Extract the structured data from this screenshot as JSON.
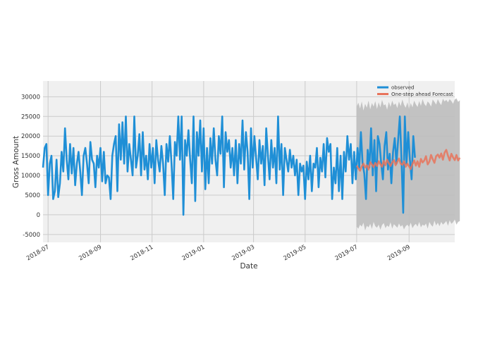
{
  "chart_data": {
    "type": "line",
    "title": "",
    "xlabel": "Date",
    "ylabel": "Gross Amount",
    "x_range": [
      "2018-06-25",
      "2019-10-25"
    ],
    "ylim": [
      -7000,
      34000
    ],
    "x_ticks": [
      "2018-07",
      "2018-09",
      "2018-11",
      "2019-01",
      "2019-03",
      "2019-05",
      "2019-07",
      "2019-09"
    ],
    "y_ticks": [
      -5000,
      0,
      5000,
      10000,
      15000,
      20000,
      25000,
      30000
    ],
    "grid": true,
    "legend_position": "top-right",
    "forecast_start": "2019-07-01",
    "series": [
      {
        "name": "observed",
        "color": "#1f8fd6",
        "start_date": "2018-06-25",
        "step_days": 2,
        "values": [
          12000,
          17000,
          18000,
          5000,
          13000,
          15000,
          4000,
          6000,
          14000,
          4500,
          8000,
          16000,
          11000,
          22000,
          14000,
          9000,
          18000,
          10500,
          17000,
          7500,
          13000,
          16000,
          11000,
          5000,
          15000,
          17000,
          13000,
          8000,
          18500,
          14000,
          13000,
          7000,
          15000,
          12000,
          17000,
          8500,
          16000,
          8000,
          10000,
          9500,
          4000,
          15000,
          18000,
          20000,
          6000,
          23000,
          14000,
          23500,
          13000,
          25000,
          11000,
          18000,
          14000,
          10000,
          25000,
          12000,
          15000,
          20500,
          10000,
          21000,
          11500,
          15000,
          9000,
          18000,
          12000,
          17000,
          8000,
          19000,
          14000,
          11000,
          17500,
          13000,
          5000,
          18000,
          13500,
          20000,
          13000,
          4000,
          18500,
          15000,
          25000,
          14000,
          25000,
          0,
          19000,
          15000,
          21500,
          14000,
          8000,
          25000,
          3500,
          21000,
          15000,
          24000,
          11000,
          22000,
          6500,
          17000,
          8000,
          19500,
          13000,
          22000,
          14000,
          10000,
          20000,
          15500,
          25000,
          7000,
          21000,
          16000,
          19000,
          12000,
          17000,
          10000,
          19000,
          8000,
          18000,
          13000,
          24000,
          11500,
          21000,
          16000,
          4000,
          22000,
          12000,
          20000,
          14500,
          9000,
          19000,
          13000,
          17500,
          7500,
          22000,
          15000,
          9000,
          19000,
          12000,
          17000,
          8000,
          25000,
          11500,
          18000,
          5000,
          17000,
          14000,
          11000,
          16500,
          12000,
          15000,
          10000,
          14000,
          5000,
          13000,
          11000,
          12500,
          4000,
          13500,
          9000,
          15000,
          6000,
          13000,
          12000,
          17000,
          7000,
          14500,
          11000,
          18000,
          9500,
          19500,
          16000,
          18000,
          4000,
          12000,
          8000,
          17000,
          6000,
          15000,
          4000,
          16000,
          11000,
          20000,
          14000,
          18000,
          8000,
          16000,
          9000,
          17000,
          12000,
          21000,
          13000,
          10500,
          4000,
          16500,
          12000,
          22000,
          10000,
          19000,
          6000,
          20000,
          18000,
          13000,
          9000,
          17500,
          21000,
          11500,
          15500,
          8000,
          16000,
          19500,
          13000,
          19000,
          25000,
          14000,
          500,
          25000,
          13000,
          21000,
          14000,
          9000,
          20000,
          14500
        ]
      },
      {
        "name": "One-step ahead Forecast",
        "color": "#e8745c",
        "start_date": "2019-07-01",
        "step_days": 2,
        "values": [
          12500,
          11800,
          11200,
          12300,
          13000,
          12000,
          12600,
          11500,
          13400,
          12800,
          12100,
          13200,
          12400,
          13600,
          12900,
          12200,
          13700,
          12600,
          14000,
          13100,
          12400,
          13300,
          13900,
          12600,
          13500,
          14300,
          13000,
          12700,
          13600,
          12200,
          13000,
          12300,
          11600,
          12900,
          13800,
          12500,
          13600,
          12200,
          14200,
          13300,
          13800,
          14900,
          12800,
          13500,
          15200,
          14100,
          13200,
          14900,
          15300,
          14500,
          15600,
          14000,
          15800,
          16500,
          15000,
          13800,
          15500,
          14600,
          13900,
          15200,
          13800,
          14500
        ]
      }
    ],
    "confidence_interval": {
      "name": "forecast confidence interval",
      "color": "#bdbdbd",
      "lower": [
        -3000,
        -3500,
        -2500,
        -3000,
        -2000,
        -4000,
        -2800,
        -3200,
        -2300,
        -3600,
        -1800,
        -2900,
        -3300,
        -2500,
        -3800,
        -2600,
        -2100,
        -3400,
        -2700,
        -3100,
        -1900,
        -3500,
        -2400,
        -2800,
        -3300,
        -2200,
        -3000,
        -2600,
        -3700,
        -2900,
        -2500,
        -3100,
        -2000,
        -3400,
        -2700,
        -2300,
        -3000,
        -1800,
        -3200,
        -2500,
        -2800,
        -2200,
        -3500,
        -1800,
        -2600,
        -3000,
        -1500,
        -2700,
        -2000,
        -2900,
        -1800,
        -2500,
        -2100,
        -1600,
        -2800,
        -1400,
        -2300,
        -1900,
        -1200,
        -2500,
        -1800,
        -1600
      ],
      "upper": [
        27500,
        28500,
        27000,
        28800,
        26500,
        28200,
        27200,
        29000,
        26800,
        28400,
        27500,
        28900,
        26900,
        28600,
        27300,
        29200,
        27800,
        28100,
        26700,
        28700,
        27400,
        29000,
        27900,
        28300,
        27100,
        28800,
        27600,
        29300,
        28000,
        27200,
        28600,
        26800,
        28400,
        27300,
        29000,
        28100,
        27400,
        28900,
        27700,
        29400,
        28200,
        27600,
        28800,
        28300,
        27500,
        29300,
        28700,
        28000,
        29400,
        28500,
        27900,
        29500,
        28800,
        29200,
        28600,
        29400,
        28900,
        28200,
        29300,
        29600,
        28700,
        29100
      ]
    }
  }
}
